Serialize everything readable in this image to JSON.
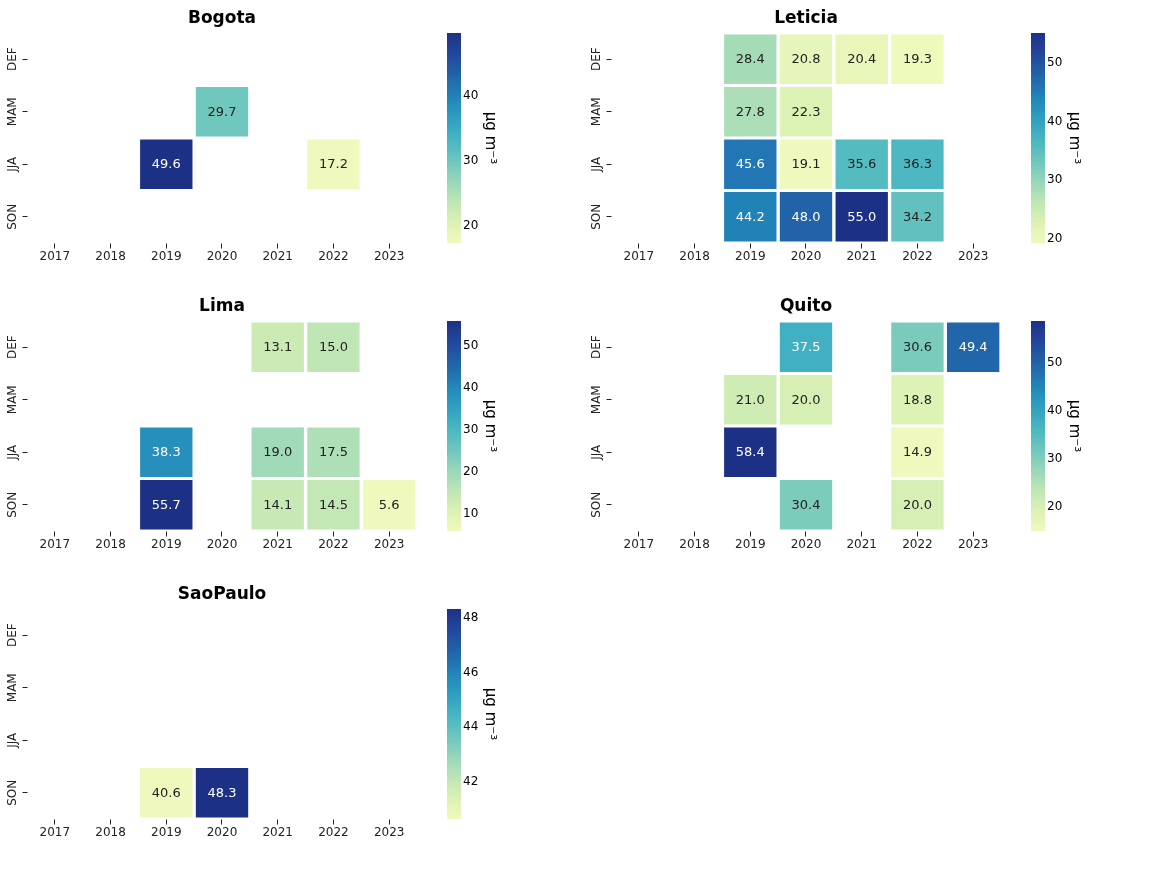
{
  "chart_data": [
    {
      "type": "heatmap",
      "title": "Bogota",
      "categories": [
        "2017",
        "2018",
        "2019",
        "2020",
        "2021",
        "2022",
        "2023"
      ],
      "y_categories": [
        "DEF",
        "MAM",
        "JJA",
        "SON"
      ],
      "cells": [
        [
          null,
          null,
          null,
          null,
          null,
          null,
          null
        ],
        [
          null,
          null,
          null,
          29.7,
          null,
          null,
          null
        ],
        [
          null,
          null,
          49.6,
          null,
          null,
          17.2,
          null
        ],
        [
          null,
          null,
          null,
          null,
          null,
          null,
          null
        ]
      ],
      "cell_labels": [
        [
          null,
          null,
          null,
          null,
          null,
          null,
          null
        ],
        [
          null,
          null,
          null,
          "29.7",
          null,
          null,
          null
        ],
        [
          null,
          null,
          "49.6",
          null,
          null,
          "17.2",
          null
        ],
        [
          null,
          null,
          null,
          null,
          null,
          null,
          null
        ]
      ],
      "clim": [
        17.2,
        49.6
      ],
      "cticks": [
        20,
        30,
        40
      ],
      "clabel": "μg m⁻³"
    },
    {
      "type": "heatmap",
      "title": "Leticia",
      "categories": [
        "2017",
        "2018",
        "2019",
        "2020",
        "2021",
        "2022",
        "2023"
      ],
      "y_categories": [
        "DEF",
        "MAM",
        "JJA",
        "SON"
      ],
      "cells": [
        [
          null,
          null,
          28.4,
          20.8,
          20.4,
          19.3,
          null
        ],
        [
          null,
          null,
          27.8,
          22.3,
          null,
          null,
          null
        ],
        [
          null,
          null,
          45.6,
          19.1,
          35.6,
          36.3,
          null
        ],
        [
          null,
          null,
          44.2,
          48.0,
          55.0,
          34.2,
          null
        ]
      ],
      "cell_labels": [
        [
          null,
          null,
          "28.4",
          "20.8",
          "20.4",
          "19.3",
          null
        ],
        [
          null,
          null,
          "27.8",
          "22.3",
          null,
          null,
          null
        ],
        [
          null,
          null,
          "45.6",
          "19.1",
          "35.6",
          "36.3",
          null
        ],
        [
          null,
          null,
          "44.2",
          "48.0",
          "55.0",
          "34.2",
          null
        ]
      ],
      "clim": [
        19.1,
        55.0
      ],
      "cticks": [
        20,
        30,
        40,
        50
      ],
      "clabel": "μg m⁻³"
    },
    {
      "type": "heatmap",
      "title": "Lima",
      "categories": [
        "2017",
        "2018",
        "2019",
        "2020",
        "2021",
        "2022",
        "2023"
      ],
      "y_categories": [
        "DEF",
        "MAM",
        "JJA",
        "SON"
      ],
      "cells": [
        [
          null,
          null,
          null,
          null,
          13.1,
          15.0,
          null
        ],
        [
          null,
          null,
          null,
          null,
          null,
          null,
          null
        ],
        [
          null,
          null,
          38.3,
          null,
          19.0,
          17.5,
          null
        ],
        [
          null,
          null,
          55.7,
          null,
          14.1,
          14.5,
          5.6
        ]
      ],
      "cell_labels": [
        [
          null,
          null,
          null,
          null,
          "13.1",
          "15.0",
          null
        ],
        [
          null,
          null,
          null,
          null,
          null,
          null,
          null
        ],
        [
          null,
          null,
          "38.3",
          null,
          "19.0",
          "17.5",
          null
        ],
        [
          null,
          null,
          "55.7",
          null,
          "14.1",
          "14.5",
          "5.6"
        ]
      ],
      "clim": [
        5.6,
        55.7
      ],
      "cticks": [
        10,
        20,
        30,
        40,
        50
      ],
      "clabel": "μg m⁻³"
    },
    {
      "type": "heatmap",
      "title": "Quito",
      "categories": [
        "2017",
        "2018",
        "2019",
        "2020",
        "2021",
        "2022",
        "2023"
      ],
      "y_categories": [
        "DEF",
        "MAM",
        "JJA",
        "SON"
      ],
      "cells": [
        [
          null,
          null,
          null,
          37.5,
          null,
          30.6,
          49.4
        ],
        [
          null,
          null,
          21.0,
          20.0,
          null,
          18.8,
          null
        ],
        [
          null,
          null,
          58.4,
          null,
          null,
          14.9,
          null
        ],
        [
          null,
          null,
          null,
          30.4,
          null,
          20.0,
          null
        ]
      ],
      "cell_labels": [
        [
          null,
          null,
          null,
          "37.5",
          null,
          "30.6",
          "49.4"
        ],
        [
          null,
          null,
          "21.0",
          "20.0",
          null,
          "18.8",
          null
        ],
        [
          null,
          null,
          "58.4",
          null,
          null,
          "14.9",
          null
        ],
        [
          null,
          null,
          null,
          "30.4",
          null,
          "20.0",
          null
        ]
      ],
      "clim": [
        14.9,
        58.4
      ],
      "cticks": [
        20,
        30,
        40,
        50
      ],
      "clabel": "μg m⁻³"
    },
    {
      "type": "heatmap",
      "title": "SaoPaulo",
      "categories": [
        "2017",
        "2018",
        "2019",
        "2020",
        "2021",
        "2022",
        "2023"
      ],
      "y_categories": [
        "DEF",
        "MAM",
        "JJA",
        "SON"
      ],
      "cells": [
        [
          null,
          null,
          null,
          null,
          null,
          null,
          null
        ],
        [
          null,
          null,
          null,
          null,
          null,
          null,
          null
        ],
        [
          null,
          null,
          null,
          null,
          null,
          null,
          null
        ],
        [
          null,
          null,
          40.6,
          48.3,
          null,
          null,
          null
        ]
      ],
      "cell_labels": [
        [
          null,
          null,
          null,
          null,
          null,
          null,
          null
        ],
        [
          null,
          null,
          null,
          null,
          null,
          null,
          null
        ],
        [
          null,
          null,
          null,
          null,
          null,
          null,
          null
        ],
        [
          null,
          null,
          "40.6",
          "48.3",
          null,
          null,
          null
        ]
      ],
      "clim": [
        40.6,
        48.3
      ],
      "cticks": [
        42,
        44,
        46,
        48
      ],
      "clabel": "μg m⁻³"
    }
  ]
}
